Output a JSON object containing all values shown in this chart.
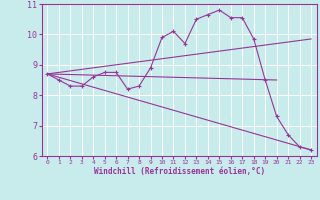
{
  "xlabel": "Windchill (Refroidissement éolien,°C)",
  "bg_color": "#c8ecec",
  "line_color": "#993399",
  "grid_color": "#ffffff",
  "xlim": [
    -0.5,
    23.5
  ],
  "ylim": [
    6,
    11
  ],
  "xticks": [
    0,
    1,
    2,
    3,
    4,
    5,
    6,
    7,
    8,
    9,
    10,
    11,
    12,
    13,
    14,
    15,
    16,
    17,
    18,
    19,
    20,
    21,
    22,
    23
  ],
  "yticks": [
    6,
    7,
    8,
    9,
    10,
    11
  ],
  "line1_x": [
    0,
    1,
    2,
    3,
    4,
    5,
    6,
    7,
    8,
    9,
    10,
    11,
    12,
    13,
    14,
    15,
    16,
    17,
    18,
    19,
    20,
    21,
    22,
    23
  ],
  "line1_y": [
    8.7,
    8.5,
    8.3,
    8.3,
    8.6,
    8.75,
    8.75,
    8.2,
    8.3,
    8.9,
    9.9,
    10.1,
    9.7,
    10.5,
    10.65,
    10.8,
    10.55,
    10.55,
    9.85,
    8.5,
    7.3,
    6.7,
    6.3,
    6.2
  ],
  "line2_x": [
    0,
    23
  ],
  "line2_y": [
    8.7,
    9.85
  ],
  "line3_x": [
    0,
    20
  ],
  "line3_y": [
    8.7,
    8.5
  ],
  "line4_x": [
    0,
    23
  ],
  "line4_y": [
    8.7,
    6.2
  ]
}
